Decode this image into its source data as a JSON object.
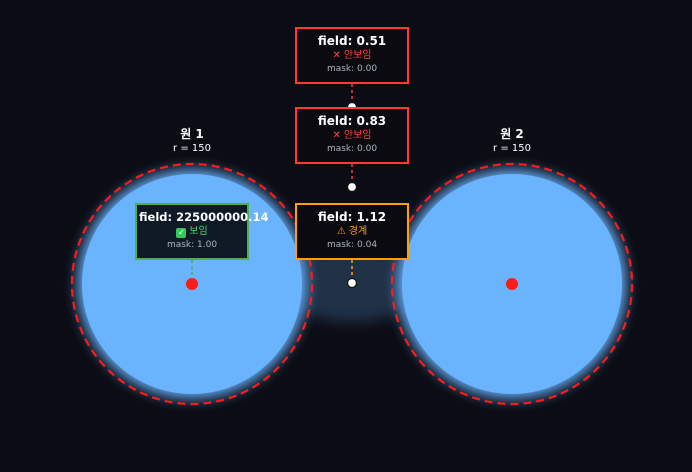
{
  "colors": {
    "background": "#0b0c14",
    "fill": "#6ab4ff",
    "circle_outline": "#ff1a1a",
    "center_dot": "#ff1a1a",
    "state_hidden": "#ff3b30",
    "state_visible": "#4caf50",
    "state_boundary": "#ff9f0a"
  },
  "circles": [
    {
      "name": "원 1",
      "radius_label": "r = 150"
    },
    {
      "name": "원 2",
      "radius_label": "r = 150"
    }
  ],
  "probes": [
    {
      "field": "field: 0.51",
      "status": "안보임",
      "status_icon": "cross-icon",
      "state": "hidden",
      "mask": "mask: 0.00"
    },
    {
      "field": "field: 0.83",
      "status": "안보임",
      "status_icon": "cross-icon",
      "state": "hidden",
      "mask": "mask: 0.00"
    },
    {
      "field": "field: 1.12",
      "status": "경계",
      "status_icon": "warning-icon",
      "state": "boundary",
      "mask": "mask: 0.04"
    },
    {
      "field": "field: 225000000.14",
      "status": "보임",
      "status_icon": "check-icon",
      "state": "visible",
      "mask": "mask: 1.00"
    }
  ]
}
